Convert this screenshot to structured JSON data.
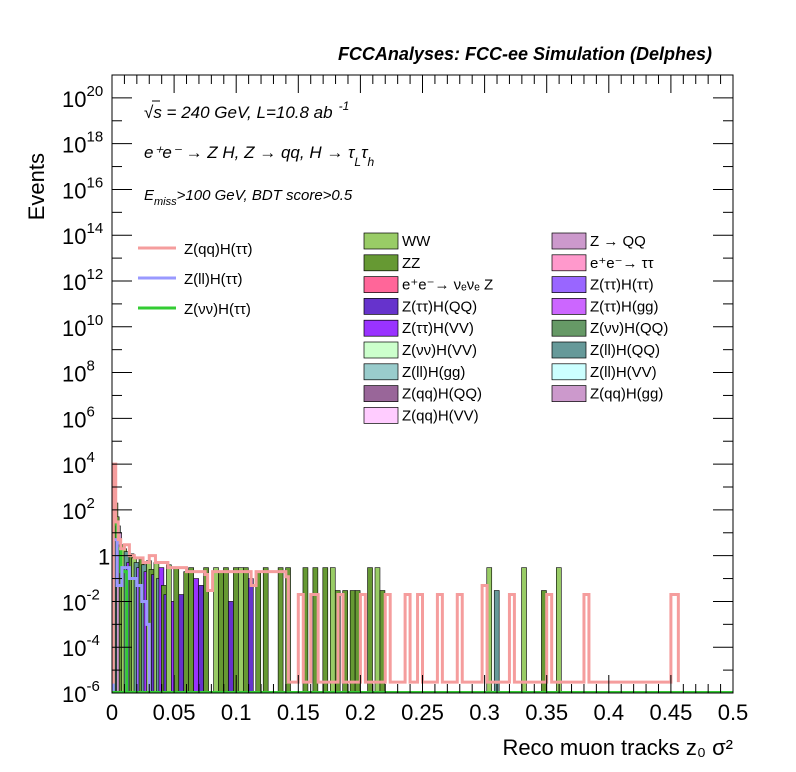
{
  "header": {
    "title": "FCCAnalyses: FCC-ee Simulation (Delphes)"
  },
  "annotations": {
    "line1": "√s = 240 GeV, L=10.8 ab",
    "line1_sup": "-1",
    "line2": "e⁺e⁻ → Z H, Z → qq, H → τ",
    "line2_tail": "τ",
    "line2_sub1": "L",
    "line2_sub2": "h",
    "line3_pre": "E",
    "line3_sub": "miss",
    "line3_post": ">100 GeV, BDT score>0.5"
  },
  "chart_data": {
    "type": "bar",
    "xlabel": "Reco muon tracks z₀ σ²",
    "ylabel": "Events",
    "xlim": [
      0,
      0.5
    ],
    "ylim": [
      1e-06,
      1e+21
    ],
    "yscale": "log",
    "x_ticks": [
      "0",
      "0.05",
      "0.1",
      "0.15",
      "0.2",
      "0.25",
      "0.3",
      "0.35",
      "0.4",
      "0.45",
      "0.5"
    ],
    "y_ticks": [
      {
        "base": "10",
        "exp": "20"
      },
      {
        "base": "10",
        "exp": "18"
      },
      {
        "base": "10",
        "exp": "16"
      },
      {
        "base": "10",
        "exp": "14"
      },
      {
        "base": "10",
        "exp": "12"
      },
      {
        "base": "10",
        "exp": "10"
      },
      {
        "base": "10",
        "exp": "8"
      },
      {
        "base": "10",
        "exp": "6"
      },
      {
        "base": "10",
        "exp": "4"
      },
      {
        "base": "10",
        "exp": "2"
      },
      {
        "base": "1",
        "exp": ""
      },
      {
        "base": "10",
        "exp": "-2"
      },
      {
        "base": "10",
        "exp": "-4"
      },
      {
        "base": "10",
        "exp": "-6"
      }
    ],
    "signal_legend": [
      {
        "label": "Z(qq)H(ττ)",
        "color": "#f59d9d"
      },
      {
        "label": "Z(ll)H(ττ)",
        "color": "#9999ff"
      },
      {
        "label": "Z(νν)H(ττ)",
        "color": "#33cc33"
      }
    ],
    "background_legend": [
      {
        "label": "WW",
        "color": "#99cc66"
      },
      {
        "label": "Z → QQ",
        "color": "#cc99cc"
      },
      {
        "label": "ZZ",
        "color": "#669933"
      },
      {
        "label": "e⁺e⁻→ ττ",
        "color": "#ff99cc"
      },
      {
        "label": "e⁺e⁻→ νₑνₑ Z",
        "color": "#ff6699"
      },
      {
        "label": "Z(ττ)H(ττ)",
        "color": "#9966ff"
      },
      {
        "label": "Z(ττ)H(QQ)",
        "color": "#6633cc"
      },
      {
        "label": "Z(ττ)H(gg)",
        "color": "#cc66ff"
      },
      {
        "label": "Z(ττ)H(VV)",
        "color": "#9933ff"
      },
      {
        "label": "Z(νν)H(QQ)",
        "color": "#669966"
      },
      {
        "label": "Z(νν)H(VV)",
        "color": "#ccffcc"
      },
      {
        "label": "Z(ll)H(QQ)",
        "color": "#669999"
      },
      {
        "label": "Z(ll)H(gg)",
        "color": "#99cccc"
      },
      {
        "label": "Z(ll)H(VV)",
        "color": "#ccffff"
      },
      {
        "label": "Z(qq)H(QQ)",
        "color": "#996699"
      },
      {
        "label": "Z(qq)H(gg)",
        "color": "#cc99cc"
      },
      {
        "label": "Z(qq)H(VV)",
        "color": "#ffccff"
      }
    ],
    "stack_bars": [
      {
        "x": 0.001,
        "y": 5000,
        "color": "#99cc66"
      },
      {
        "x": 0.002,
        "y": 200,
        "color": "#669933"
      },
      {
        "x": 0.003,
        "y": 50,
        "color": "#669933"
      },
      {
        "x": 0.004,
        "y": 20,
        "color": "#669999"
      },
      {
        "x": 0.005,
        "y": 10,
        "color": "#cc99cc"
      },
      {
        "x": 0.007,
        "y": 3,
        "color": "#669933"
      },
      {
        "x": 0.009,
        "y": 2,
        "color": "#99cc66"
      },
      {
        "x": 0.011,
        "y": 1.5,
        "color": "#669999"
      },
      {
        "x": 0.013,
        "y": 0.5,
        "color": "#9933ff"
      },
      {
        "x": 0.015,
        "y": 1.2,
        "color": "#669933"
      },
      {
        "x": 0.017,
        "y": 0.8,
        "color": "#99cc66"
      },
      {
        "x": 0.019,
        "y": 0.5,
        "color": "#669999"
      },
      {
        "x": 0.021,
        "y": 0.3,
        "color": "#9966ff"
      },
      {
        "x": 0.023,
        "y": 0.7,
        "color": "#669933"
      },
      {
        "x": 0.025,
        "y": 0.4,
        "color": "#669999"
      },
      {
        "x": 0.027,
        "y": 0.2,
        "color": "#9933ff"
      },
      {
        "x": 0.029,
        "y": 0.6,
        "color": "#99cc66"
      },
      {
        "x": 0.031,
        "y": 0.25,
        "color": "#669933"
      },
      {
        "x": 0.033,
        "y": 0.15,
        "color": "#6633cc"
      },
      {
        "x": 0.035,
        "y": 0.5,
        "color": "#99cc66"
      },
      {
        "x": 0.037,
        "y": 0.1,
        "color": "#669999"
      },
      {
        "x": 0.039,
        "y": 0.3,
        "color": "#9933ff"
      },
      {
        "x": 0.041,
        "y": 0.05,
        "color": "#669933"
      },
      {
        "x": 0.043,
        "y": 0.02,
        "color": "#6633cc"
      },
      {
        "x": 0.045,
        "y": 0.4,
        "color": "#99cc66"
      },
      {
        "x": 0.049,
        "y": 0.01,
        "color": "#9933ff"
      },
      {
        "x": 0.051,
        "y": 0.3,
        "color": "#669933"
      },
      {
        "x": 0.055,
        "y": 0.02,
        "color": "#6633cc"
      },
      {
        "x": 0.059,
        "y": 0.2,
        "color": "#669933"
      },
      {
        "x": 0.063,
        "y": 0.3,
        "color": "#669933"
      },
      {
        "x": 0.067,
        "y": 0.1,
        "color": "#9933ff"
      },
      {
        "x": 0.071,
        "y": 0.05,
        "color": "#6633cc"
      },
      {
        "x": 0.075,
        "y": 0.3,
        "color": "#669933"
      },
      {
        "x": 0.083,
        "y": 0.3,
        "color": "#99cc66"
      },
      {
        "x": 0.087,
        "y": 0.2,
        "color": "#669933"
      },
      {
        "x": 0.091,
        "y": 0.3,
        "color": "#669933"
      },
      {
        "x": 0.095,
        "y": 0.01,
        "color": "#6633cc"
      },
      {
        "x": 0.099,
        "y": 0.3,
        "color": "#669933"
      },
      {
        "x": 0.103,
        "y": 0.3,
        "color": "#99cc66"
      },
      {
        "x": 0.107,
        "y": 0.3,
        "color": "#669933"
      },
      {
        "x": 0.111,
        "y": 0.1,
        "color": "#6633cc"
      },
      {
        "x": 0.117,
        "y": 0.2,
        "color": "#669933"
      },
      {
        "x": 0.123,
        "y": 0.3,
        "color": "#669933"
      },
      {
        "x": 0.135,
        "y": 0.3,
        "color": "#669933"
      },
      {
        "x": 0.141,
        "y": 0.3,
        "color": "#669933"
      },
      {
        "x": 0.155,
        "y": 0.3,
        "color": "#669933"
      },
      {
        "x": 0.163,
        "y": 0.3,
        "color": "#669933"
      },
      {
        "x": 0.171,
        "y": 0.3,
        "color": "#669933"
      },
      {
        "x": 0.177,
        "y": 0.3,
        "color": "#99cc66"
      },
      {
        "x": 0.181,
        "y": 0.03,
        "color": "#669933"
      },
      {
        "x": 0.187,
        "y": 0.03,
        "color": "#669933"
      },
      {
        "x": 0.193,
        "y": 0.03,
        "color": "#669933"
      },
      {
        "x": 0.197,
        "y": 0.03,
        "color": "#669933"
      },
      {
        "x": 0.207,
        "y": 0.3,
        "color": "#669933"
      },
      {
        "x": 0.213,
        "y": 0.3,
        "color": "#99cc66"
      },
      {
        "x": 0.217,
        "y": 0.03,
        "color": "#669933"
      },
      {
        "x": 0.303,
        "y": 0.3,
        "color": "#99cc66"
      },
      {
        "x": 0.309,
        "y": 0.03,
        "color": "#669999"
      },
      {
        "x": 0.331,
        "y": 0.3,
        "color": "#99cc66"
      },
      {
        "x": 0.347,
        "y": 0.03,
        "color": "#669933"
      },
      {
        "x": 0.359,
        "y": 0.3,
        "color": "#99cc66"
      }
    ],
    "signal_qq_step": [
      {
        "x": 0.0,
        "y": 3e-06
      },
      {
        "x": 0.001,
        "y": 10000.0
      },
      {
        "x": 0.003,
        "y": 30
      },
      {
        "x": 0.005,
        "y": 5
      },
      {
        "x": 0.007,
        "y": 2
      },
      {
        "x": 0.01,
        "y": 3
      },
      {
        "x": 0.014,
        "y": 1
      },
      {
        "x": 0.018,
        "y": 0.8
      },
      {
        "x": 0.025,
        "y": 0.5
      },
      {
        "x": 0.03,
        "y": 1
      },
      {
        "x": 0.035,
        "y": 0.5
      },
      {
        "x": 0.045,
        "y": 0.3
      },
      {
        "x": 0.06,
        "y": 0.2
      },
      {
        "x": 0.075,
        "y": 0.15
      },
      {
        "x": 0.077,
        "y": 0.03
      },
      {
        "x": 0.081,
        "y": 0.2
      },
      {
        "x": 0.1,
        "y": 0.2
      },
      {
        "x": 0.112,
        "y": 0.05
      },
      {
        "x": 0.116,
        "y": 0.2
      },
      {
        "x": 0.14,
        "y": 0.12
      },
      {
        "x": 0.142,
        "y": 3e-06
      },
      {
        "x": 0.15,
        "y": 0.02
      },
      {
        "x": 0.154,
        "y": 3e-06
      },
      {
        "x": 0.16,
        "y": 0.02
      },
      {
        "x": 0.166,
        "y": 3e-06
      },
      {
        "x": 0.182,
        "y": 0.02
      },
      {
        "x": 0.186,
        "y": 3e-06
      },
      {
        "x": 0.2,
        "y": 0.02
      },
      {
        "x": 0.204,
        "y": 3e-06
      },
      {
        "x": 0.22,
        "y": 0.02
      },
      {
        "x": 0.224,
        "y": 3e-06
      },
      {
        "x": 0.236,
        "y": 0.02
      },
      {
        "x": 0.24,
        "y": 3e-06
      },
      {
        "x": 0.246,
        "y": 0.02
      },
      {
        "x": 0.25,
        "y": 3e-06
      },
      {
        "x": 0.262,
        "y": 0.02
      },
      {
        "x": 0.266,
        "y": 3e-06
      },
      {
        "x": 0.278,
        "y": 0.02
      },
      {
        "x": 0.282,
        "y": 3e-06
      },
      {
        "x": 0.298,
        "y": 0.05
      },
      {
        "x": 0.302,
        "y": 3e-06
      },
      {
        "x": 0.32,
        "y": 0.02
      },
      {
        "x": 0.324,
        "y": 3e-06
      },
      {
        "x": 0.35,
        "y": 0.02
      },
      {
        "x": 0.354,
        "y": 3e-06
      },
      {
        "x": 0.38,
        "y": 0.02
      },
      {
        "x": 0.384,
        "y": 3e-06
      },
      {
        "x": 0.45,
        "y": 0.02
      },
      {
        "x": 0.456,
        "y": 3e-06
      }
    ],
    "signal_ll_step": [
      {
        "x": 0.0,
        "y": 1e-06
      },
      {
        "x": 0.001,
        "y": 5
      },
      {
        "x": 0.004,
        "y": 0.05
      },
      {
        "x": 0.008,
        "y": 0.3
      },
      {
        "x": 0.014,
        "y": 0.1
      },
      {
        "x": 0.02,
        "y": 0.05
      },
      {
        "x": 0.024,
        "y": 0.01
      },
      {
        "x": 0.028,
        "y": 0.001
      },
      {
        "x": 0.03,
        "y": 1e-06
      }
    ],
    "signal_vv_step": [
      {
        "x": 0.0,
        "y": 1e-06
      },
      {
        "x": 0.001,
        "y": 30
      },
      {
        "x": 0.004,
        "y": 2
      },
      {
        "x": 0.007,
        "y": 0.2
      },
      {
        "x": 0.012,
        "y": 1e-06
      }
    ]
  }
}
